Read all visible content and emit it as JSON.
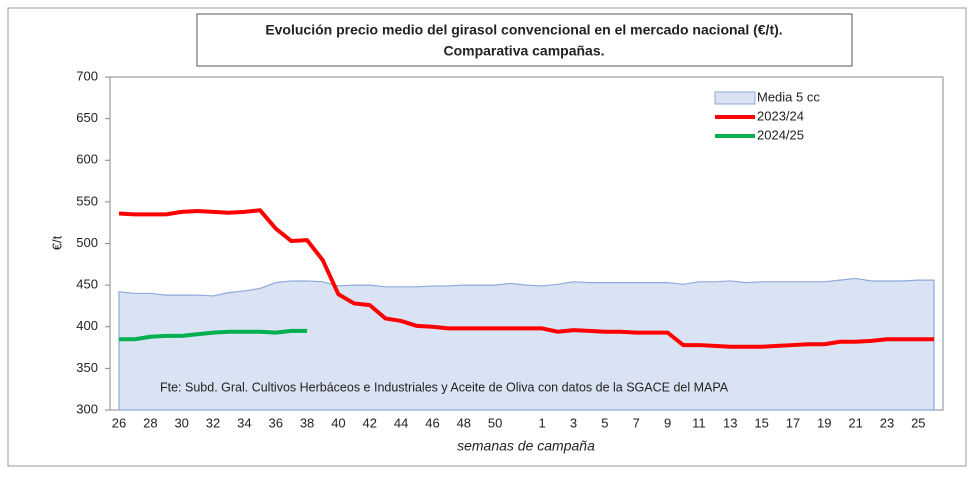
{
  "chart_data": {
    "type": "line",
    "title": "Evolución precio medio del girasol convencional en el mercado nacional (€/t).",
    "subtitle": "Comparativa campañas.",
    "x_label": "semanas de campaña",
    "y_label": "€/t",
    "annotation": "Fte: Subd. Gral. Cultivos Herbáceos e Industriales y Aceite de Oliva con datos de la SGACE del MAPA",
    "categories": [
      26,
      null,
      28,
      null,
      30,
      null,
      32,
      null,
      34,
      null,
      36,
      null,
      38,
      null,
      40,
      null,
      42,
      null,
      44,
      null,
      46,
      null,
      48,
      null,
      50,
      null,
      null,
      1,
      null,
      3,
      null,
      5,
      null,
      7,
      null,
      9,
      null,
      11,
      null,
      13,
      null,
      15,
      null,
      17,
      null,
      19,
      null,
      21,
      null,
      23,
      null,
      25,
      null
    ],
    "ylim": [
      300,
      700
    ],
    "yticks": [
      300,
      350,
      400,
      450,
      500,
      550,
      600,
      650,
      700
    ],
    "grid": false,
    "legend": "upper right",
    "series": [
      {
        "name": "Media 5 cc",
        "kind": "area",
        "color": "#dae3f3",
        "edge": "#8faadc",
        "values": [
          442,
          440,
          440,
          438,
          438,
          438,
          437,
          441,
          443,
          446,
          453,
          455,
          455,
          454,
          449,
          450,
          450,
          448,
          448,
          448,
          449,
          449,
          450,
          450,
          450,
          452,
          450,
          449,
          451,
          454,
          453,
          453,
          453,
          453,
          453,
          453,
          451,
          454,
          454,
          455,
          453,
          454,
          454,
          454,
          454,
          454,
          456,
          458,
          455,
          455,
          455,
          456,
          456
        ]
      },
      {
        "name": "2023/24",
        "kind": "line",
        "color": "#ff0000",
        "values": [
          536,
          535,
          535,
          535,
          538,
          539,
          538,
          537,
          538,
          540,
          518,
          503,
          504,
          480,
          439,
          428,
          426,
          410,
          407,
          401,
          400,
          398,
          398,
          398,
          398,
          398,
          398,
          398,
          394,
          396,
          395,
          394,
          394,
          393,
          393,
          393,
          378,
          378,
          377,
          376,
          376,
          376,
          377,
          378,
          379,
          379,
          382,
          382,
          383,
          385,
          385,
          385,
          385
        ]
      },
      {
        "name": "2024/25",
        "kind": "line",
        "color": "#00b050",
        "values": [
          385,
          385,
          388,
          389,
          389,
          391,
          393,
          394,
          394,
          394,
          393,
          395,
          395,
          null,
          null,
          null,
          null,
          null,
          null,
          null,
          null,
          null,
          null,
          null,
          null,
          null,
          null,
          null,
          null,
          null,
          null,
          null,
          null,
          null,
          null,
          null,
          null,
          null,
          null,
          null,
          null,
          null,
          null,
          null,
          null,
          null,
          null,
          null,
          null,
          null,
          null,
          null,
          null
        ]
      }
    ]
  }
}
